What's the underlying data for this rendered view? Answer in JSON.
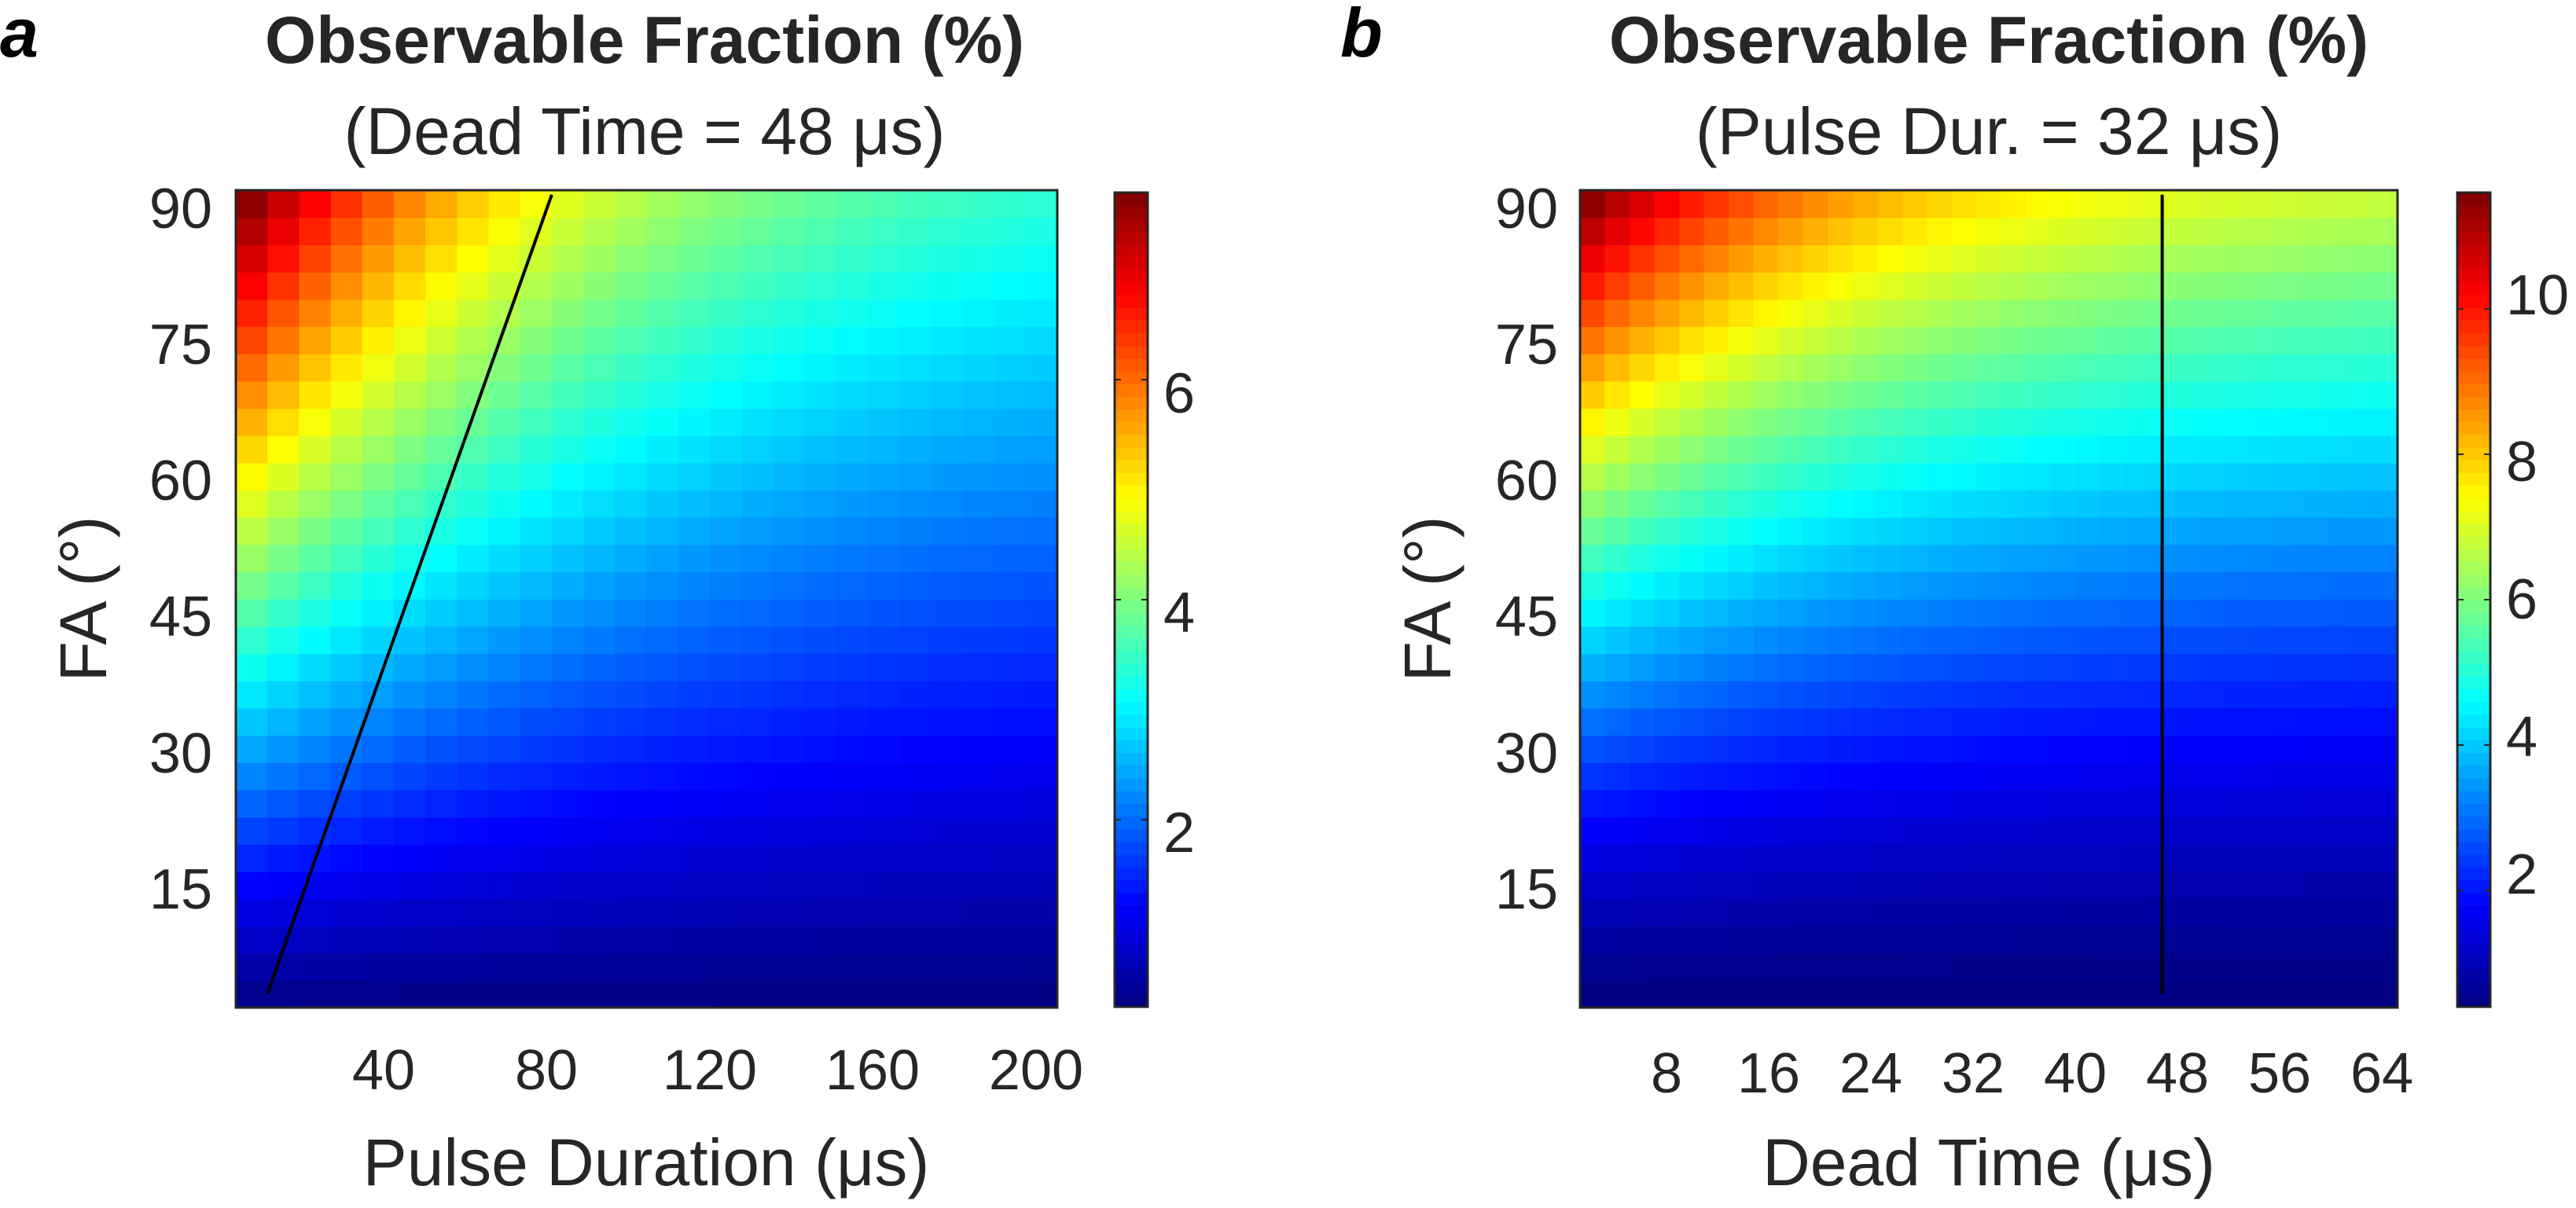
{
  "panels": [
    {
      "panel_label": "a",
      "title": "Observable Fraction (%)",
      "subtitle": "(Dead Time = 48 μs)",
      "xlabel": "Pulse Duration (μs)",
      "ylabel": "FA (°)",
      "x_ticks": [
        "40",
        "80",
        "120",
        "160",
        "200"
      ],
      "y_ticks": [
        "90",
        "75",
        "60",
        "45",
        "30",
        "15"
      ],
      "colorbar_ticks": [
        "6",
        "4",
        "2"
      ]
    },
    {
      "panel_label": "b",
      "title": "Observable Fraction (%)",
      "subtitle": "(Pulse Dur. = 32 μs)",
      "xlabel": "Dead Time (μs)",
      "ylabel": "FA (°)",
      "x_ticks": [
        "8",
        "16",
        "24",
        "32",
        "40",
        "48",
        "56",
        "64"
      ],
      "y_ticks": [
        "90",
        "75",
        "60",
        "45",
        "30",
        "15"
      ],
      "colorbar_ticks": [
        "10",
        "8",
        "6",
        "4",
        "2"
      ]
    }
  ],
  "chart_data": [
    {
      "type": "heatmap",
      "title": "Observable Fraction (%)",
      "subtitle": "(Dead Time = 48 μs)",
      "xlabel": "Pulse Duration (μs)",
      "ylabel": "FA (°)",
      "x_range": [
        4,
        200
      ],
      "x_step": 8,
      "y_range": [
        2,
        90
      ],
      "y_step": 3,
      "x_ticks": [
        40,
        80,
        120,
        160,
        200
      ],
      "y_ticks": [
        15,
        30,
        45,
        60,
        75,
        90
      ],
      "colorbar_range": [
        0.3,
        7.7
      ],
      "colorbar_ticks": [
        2,
        4,
        6
      ],
      "colormap": "jet",
      "value_model": "z = zmin + (zmax - zmin) * (FA/90)^1.1 * (0.37 + 0.63 * exp(-(PulseDuration - 4)/80))",
      "overlay_line": {
        "x": [
          8,
          80
        ],
        "y": [
          2,
          90
        ],
        "color": "#000000"
      }
    },
    {
      "type": "heatmap",
      "title": "Observable Fraction (%)",
      "subtitle": "(Pulse Dur. = 32 μs)",
      "xlabel": "Dead Time (μs)",
      "ylabel": "FA (°)",
      "x_range": [
        2,
        66
      ],
      "x_step": 2,
      "y_range": [
        2,
        90
      ],
      "y_step": 3,
      "x_ticks": [
        8,
        16,
        24,
        32,
        40,
        48,
        56,
        64
      ],
      "y_ticks": [
        15,
        30,
        45,
        60,
        75,
        90
      ],
      "colorbar_range": [
        0.4,
        11.6
      ],
      "colorbar_ticks": [
        2,
        4,
        6,
        8,
        10
      ],
      "colormap": "jet",
      "value_model": "z = zmin + (zmax - zmin) * (FA/90)^1.4 * (0.55 + 0.45 * exp(-(DeadTime - 2)/22))",
      "overlay_line": {
        "x": [
          48,
          48
        ],
        "y": [
          2,
          90
        ],
        "color": "#000000"
      }
    }
  ]
}
